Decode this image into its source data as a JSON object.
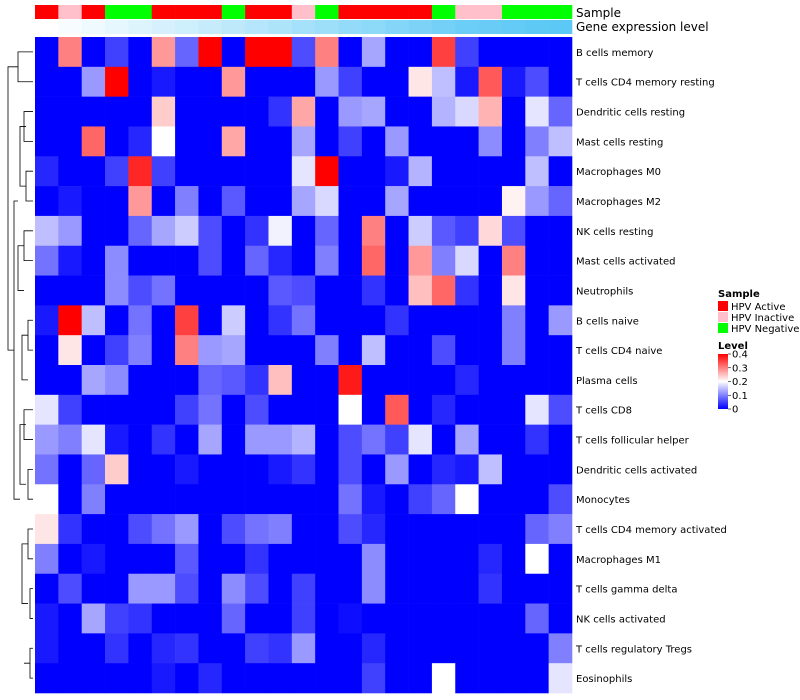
{
  "chart_data": {
    "type": "heatmap",
    "title": "",
    "annotation_labels": [
      "Sample",
      "Gene expression level"
    ],
    "rows": [
      "B cells memory",
      "T cells CD4 memory resting",
      "Dendritic cells resting",
      "Mast cells resting",
      "Macrophages M0",
      "Macrophages M2",
      "NK cells resting",
      "Mast cells activated",
      "Neutrophils",
      "B cells naive",
      "T cells CD4 naive",
      "Plasma cells",
      "T cells CD8",
      "T cells follicular helper",
      "Dendritic cells activated",
      "Monocytes",
      "T cells CD4 memory activated",
      "Macrophages M1",
      "T cells gamma delta",
      "NK cells activated",
      "T cells regulatory  Tregs",
      "Eosinophils"
    ],
    "sample_groups": [
      "HPV Active",
      "HPV Inactive",
      "HPV Active",
      "HPV Negative",
      "HPV Negative",
      "HPV Active",
      "HPV Active",
      "HPV Active",
      "HPV Negative",
      "HPV Active",
      "HPV Active",
      "HPV Inactive",
      "HPV Negative",
      "HPV Active",
      "HPV Active",
      "HPV Active",
      "HPV Active",
      "HPV Negative",
      "HPV Inactive",
      "HPV Inactive",
      "HPV Negative",
      "HPV Negative",
      "HPV Negative"
    ],
    "expression_level": [
      0.0,
      0.05,
      0.1,
      0.15,
      0.2,
      0.25,
      0.3,
      0.35,
      0.4,
      0.45,
      0.5,
      0.55,
      0.6,
      0.65,
      0.7,
      0.75,
      0.8,
      0.85,
      0.9,
      0.92,
      0.95,
      0.98,
      1.0
    ],
    "values": [
      [
        0.0,
        0.3,
        0.0,
        0.05,
        0.0,
        0.28,
        0.08,
        0.4,
        0.0,
        0.4,
        0.4,
        0.06,
        0.3,
        0.0,
        0.13,
        0.0,
        0.0,
        0.35,
        0.05,
        0.0,
        0.0,
        0.0,
        0.0
      ],
      [
        0.0,
        0.0,
        0.12,
        0.4,
        0.0,
        0.02,
        0.0,
        0.0,
        0.28,
        0.0,
        0.0,
        0.0,
        0.12,
        0.05,
        0.0,
        0.0,
        0.22,
        0.15,
        0.02,
        0.33,
        0.02,
        0.06,
        0.0
      ],
      [
        0.0,
        0.0,
        0.0,
        0.0,
        0.0,
        0.24,
        0.0,
        0.0,
        0.0,
        0.0,
        0.04,
        0.27,
        0.0,
        0.12,
        0.13,
        0.0,
        0.0,
        0.14,
        0.17,
        0.26,
        0.0,
        0.18,
        0.08
      ],
      [
        0.0,
        0.0,
        0.32,
        0.0,
        0.03,
        0.2,
        0.0,
        0.0,
        0.27,
        0.0,
        0.0,
        0.13,
        0.0,
        0.05,
        0.0,
        0.12,
        0.0,
        0.0,
        0.0,
        0.11,
        0.0,
        0.1,
        0.15
      ],
      [
        0.03,
        0.0,
        0.0,
        0.05,
        0.37,
        0.05,
        0.0,
        0.0,
        0.0,
        0.0,
        0.0,
        0.18,
        0.4,
        0.0,
        0.0,
        0.02,
        0.14,
        0.0,
        0.0,
        0.0,
        0.0,
        0.15,
        0.0
      ],
      [
        0.0,
        0.02,
        0.0,
        0.0,
        0.28,
        0.0,
        0.1,
        0.0,
        0.07,
        0.0,
        0.0,
        0.13,
        0.17,
        0.0,
        0.0,
        0.13,
        0.0,
        0.0,
        0.0,
        0.0,
        0.21,
        0.12,
        0.08
      ],
      [
        0.15,
        0.12,
        0.0,
        0.0,
        0.08,
        0.13,
        0.16,
        0.06,
        0.0,
        0.04,
        0.19,
        0.0,
        0.08,
        0.0,
        0.3,
        0.0,
        0.16,
        0.07,
        0.05,
        0.23,
        0.06,
        0.0,
        0.0
      ],
      [
        0.09,
        0.02,
        0.0,
        0.11,
        0.0,
        0.0,
        0.0,
        0.06,
        0.0,
        0.08,
        0.03,
        0.0,
        0.1,
        0.0,
        0.32,
        0.0,
        0.28,
        0.1,
        0.17,
        0.0,
        0.3,
        0.0,
        0.0
      ],
      [
        0.0,
        0.0,
        0.0,
        0.11,
        0.06,
        0.09,
        0.0,
        0.0,
        0.0,
        0.0,
        0.07,
        0.06,
        0.0,
        0.0,
        0.04,
        0.0,
        0.25,
        0.32,
        0.04,
        0.0,
        0.22,
        0.0,
        0.0
      ],
      [
        0.02,
        0.4,
        0.15,
        0.0,
        0.09,
        0.0,
        0.35,
        0.0,
        0.16,
        0.0,
        0.04,
        0.09,
        0.0,
        0.0,
        0.0,
        0.04,
        0.0,
        0.0,
        0.0,
        0.0,
        0.1,
        0.0,
        0.12
      ],
      [
        0.0,
        0.22,
        0.0,
        0.05,
        0.1,
        0.0,
        0.3,
        0.12,
        0.13,
        0.0,
        0.0,
        0.0,
        0.1,
        0.0,
        0.15,
        0.0,
        0.0,
        0.06,
        0.0,
        0.0,
        0.1,
        0.0,
        0.0
      ],
      [
        0.0,
        0.0,
        0.13,
        0.11,
        0.0,
        0.0,
        0.0,
        0.08,
        0.07,
        0.04,
        0.25,
        0.0,
        0.0,
        0.38,
        0.0,
        0.0,
        0.0,
        0.0,
        0.03,
        0.0,
        0.0,
        0.0,
        0.0
      ],
      [
        0.18,
        0.05,
        0.0,
        0.0,
        0.0,
        0.0,
        0.05,
        0.09,
        0.0,
        0.06,
        0.0,
        0.0,
        0.0,
        0.2,
        0.0,
        0.33,
        0.0,
        0.03,
        0.0,
        0.0,
        0.0,
        0.18,
        0.06
      ],
      [
        0.12,
        0.1,
        0.18,
        0.02,
        0.0,
        0.04,
        0.0,
        0.13,
        0.0,
        0.12,
        0.12,
        0.14,
        0.0,
        0.06,
        0.09,
        0.05,
        0.18,
        0.0,
        0.13,
        0.0,
        0.0,
        0.04,
        0.0
      ],
      [
        0.09,
        0.0,
        0.08,
        0.24,
        0.0,
        0.0,
        0.02,
        0.0,
        0.0,
        0.0,
        0.02,
        0.04,
        0.0,
        0.06,
        0.0,
        0.12,
        0.0,
        0.03,
        0.02,
        0.15,
        0.0,
        0.0,
        0.0
      ],
      [
        0.2,
        0.0,
        0.1,
        0.0,
        0.0,
        0.0,
        0.0,
        0.0,
        0.0,
        0.0,
        0.0,
        0.0,
        0.0,
        0.09,
        0.02,
        0.0,
        0.05,
        0.08,
        0.2,
        0.0,
        0.0,
        0.0,
        0.06
      ],
      [
        0.22,
        0.04,
        0.0,
        0.0,
        0.06,
        0.09,
        0.12,
        0.0,
        0.06,
        0.09,
        0.1,
        0.0,
        0.0,
        0.06,
        0.03,
        0.0,
        0.0,
        0.0,
        0.0,
        0.0,
        0.0,
        0.08,
        0.1
      ],
      [
        0.1,
        0.0,
        0.02,
        0.0,
        0.0,
        0.0,
        0.07,
        0.0,
        0.0,
        0.04,
        0.0,
        0.0,
        0.0,
        0.0,
        0.11,
        0.0,
        0.0,
        0.0,
        0.0,
        0.03,
        0.0,
        0.2,
        0.0
      ],
      [
        0.0,
        0.06,
        0.0,
        0.0,
        0.12,
        0.12,
        0.06,
        0.0,
        0.11,
        0.06,
        0.0,
        0.05,
        0.0,
        0.0,
        0.11,
        0.0,
        0.0,
        0.0,
        0.0,
        0.04,
        0.0,
        0.0,
        0.0
      ],
      [
        0.02,
        0.0,
        0.13,
        0.05,
        0.04,
        0.0,
        0.0,
        0.0,
        0.08,
        0.0,
        0.0,
        0.05,
        0.0,
        0.01,
        0.0,
        0.0,
        0.0,
        0.0,
        0.0,
        0.0,
        0.0,
        0.08,
        0.0
      ],
      [
        0.02,
        0.0,
        0.0,
        0.04,
        0.0,
        0.03,
        0.04,
        0.0,
        0.0,
        0.05,
        0.04,
        0.12,
        0.0,
        0.0,
        0.03,
        0.0,
        0.0,
        0.0,
        0.0,
        0.0,
        0.0,
        0.0,
        0.1
      ],
      [
        0.0,
        0.0,
        0.0,
        0.0,
        0.0,
        0.02,
        0.0,
        0.03,
        0.0,
        0.0,
        0.0,
        0.0,
        0.0,
        0.0,
        0.05,
        0.0,
        0.0,
        0.2,
        0.0,
        0.0,
        0.0,
        0.0,
        0.18
      ]
    ],
    "legend": {
      "sample_title": "Sample",
      "sample_entries": [
        {
          "label": "HPV Active",
          "color": "#FF0000"
        },
        {
          "label": "HPV Inactive",
          "color": "#FFC0CB"
        },
        {
          "label": "HPV Negative",
          "color": "#00FF00"
        }
      ],
      "level_title": "Level",
      "level_ticks": [
        "0.4",
        "0.3",
        "0.2",
        "0.1",
        "0"
      ],
      "level_tick_values": [
        0.4,
        0.3,
        0.2,
        0.1,
        0
      ]
    },
    "value_range": [
      0,
      0.4
    ],
    "color_scale": [
      "#0000FF",
      "#FFFFFF",
      "#FF0000"
    ],
    "expression_scale": [
      "#FFFFFF",
      "#5BC8F5"
    ],
    "dendrogram": "rows"
  }
}
